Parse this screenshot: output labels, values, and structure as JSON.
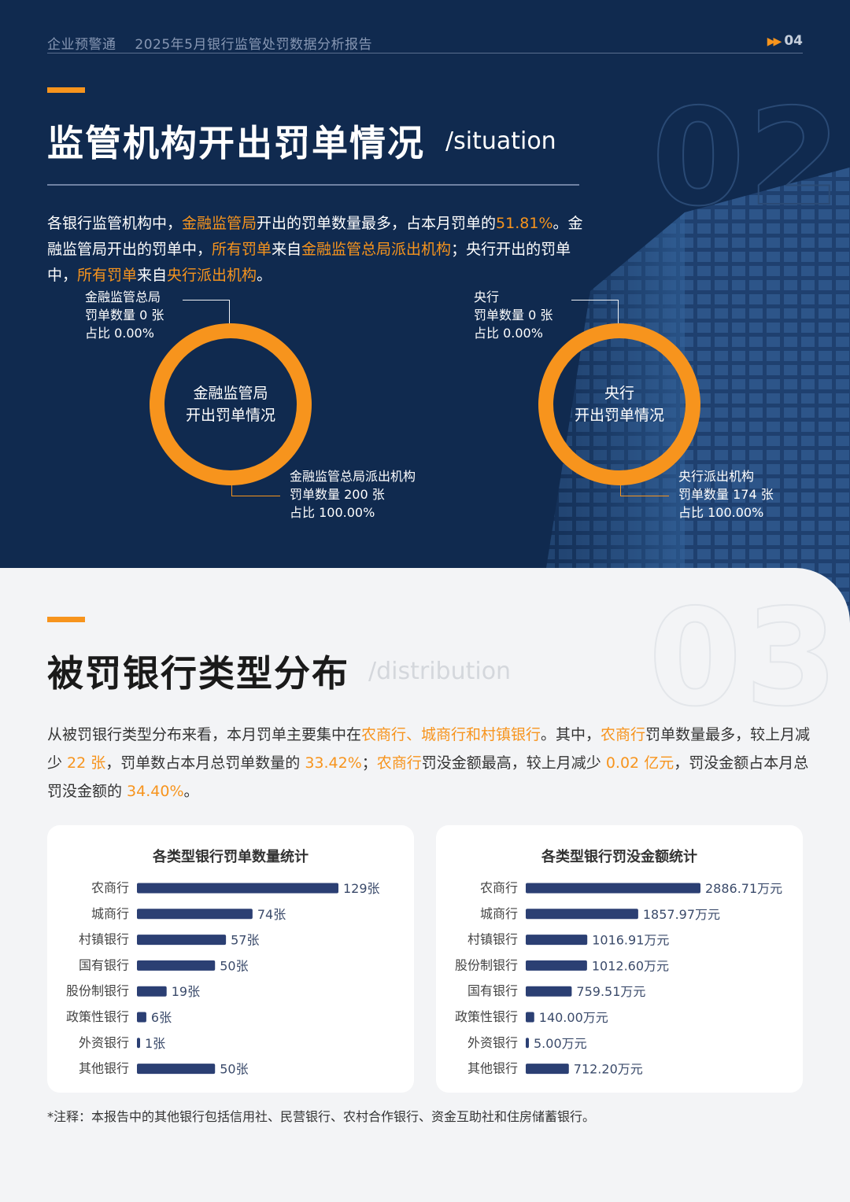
{
  "header": {
    "brand": "企业预警通",
    "report": "2025年5月银行监管处罚数据分析报告",
    "page": "04"
  },
  "section02": {
    "title": "监管机构开出罚单情况",
    "subtitle": "/situation",
    "number": "02",
    "intro": {
      "p1": "各银行监管机构中，",
      "h1": "金融监管局",
      "p2": "开出的罚单数量最多，占本月罚单的",
      "h2": "51.81%",
      "p3": "。金融监管局开出的罚单中，",
      "h3": "所有罚单",
      "p4": "来自",
      "h4": "金融监管总局派出机构",
      "p5": "；央行开出的罚单中，",
      "h5": "所有罚单",
      "p6": "来自",
      "h6": "央行派出机构",
      "p7": "。"
    },
    "donuts": [
      {
        "center_l1": "金融监管局",
        "center_l2": "开出罚单情况",
        "top": {
          "name": "金融监管总局",
          "count": "罚单数量 0 张",
          "share": "占比 0.00%"
        },
        "bottom": {
          "name": "金融监管总局派出机构",
          "count": "罚单数量 200 张",
          "share": "占比 100.00%"
        }
      },
      {
        "center_l1": "央行",
        "center_l2": "开出罚单情况",
        "top": {
          "name": "央行",
          "count": "罚单数量 0 张",
          "share": "占比 0.00%"
        },
        "bottom": {
          "name": "央行派出机构",
          "count": "罚单数量 174 张",
          "share": "占比 100.00%"
        }
      }
    ]
  },
  "section03": {
    "title": "被罚银行类型分布",
    "subtitle": "/distribution",
    "number": "03",
    "intro": {
      "p1": "从被罚银行类型分布来看，本月罚单主要集中在",
      "h1": "农商行、城商行和村镇银行",
      "p2": "。其中，",
      "h2": "农商行",
      "p3": "罚单数量最多，较上月减少 ",
      "h3": "22 张",
      "p4": "，罚单数占本月总罚单数量的 ",
      "h4": "33.42%",
      "p5": "；",
      "h5": "农商行",
      "p6": "罚没金额最高，较上月减少 ",
      "h6": "0.02 亿元",
      "p7": "，罚没金额占本月总罚没金额的 ",
      "h7": "34.40%",
      "p8": "。"
    },
    "note": "*注释：本报告中的其他银行包括信用社、民营银行、农村合作银行、资金互助社和住房储蓄银行。"
  },
  "colors": {
    "navy": "#102a4f",
    "orange": "#f7941d",
    "bar": "#2b3f73"
  },
  "chart_data": [
    {
      "type": "bar",
      "orientation": "horizontal",
      "title": "各类型银行罚单数量统计",
      "categories": [
        "农商行",
        "城商行",
        "村镇银行",
        "国有银行",
        "股份制银行",
        "政策性银行",
        "外资银行",
        "其他银行"
      ],
      "values": [
        129,
        74,
        57,
        50,
        19,
        6,
        1,
        50
      ],
      "labels": [
        "129张",
        "74张",
        "57张",
        "50张",
        "19张",
        "6张",
        "1张",
        "50张"
      ],
      "unit": "张"
    },
    {
      "type": "bar",
      "orientation": "horizontal",
      "title": "各类型银行罚没金额统计",
      "categories": [
        "农商行",
        "城商行",
        "村镇银行",
        "股份制银行",
        "国有银行",
        "政策性银行",
        "外资银行",
        "其他银行"
      ],
      "values": [
        2886.71,
        1857.97,
        1016.91,
        1012.6,
        759.51,
        140.0,
        5.0,
        712.2
      ],
      "labels": [
        "2886.71万元",
        "1857.97万元",
        "1016.91万元",
        "1012.60万元",
        "759.51万元",
        "140.00万元",
        "5.00万元",
        "712.20万元"
      ],
      "unit": "万元"
    }
  ]
}
